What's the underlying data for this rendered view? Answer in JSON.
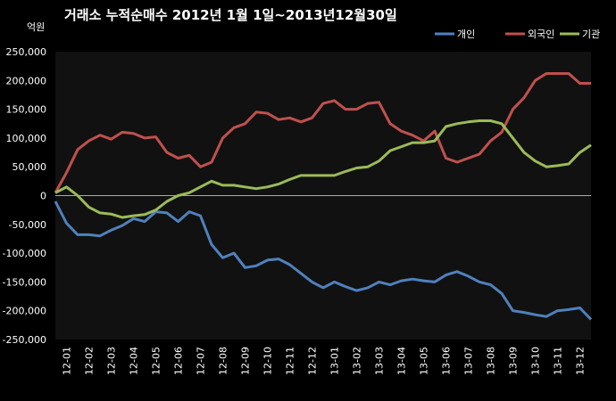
{
  "chart_data": {
    "type": "line",
    "title": "거래소 누적순매수 2012년 1월 1일~2013년12월30일",
    "y_unit_label": "억원",
    "ylim": [
      -250000,
      250000
    ],
    "y_ticks": [
      250000,
      200000,
      150000,
      100000,
      50000,
      0,
      -50000,
      -100000,
      -150000,
      -200000,
      -250000
    ],
    "y_tick_labels": [
      "250,000",
      "200,000",
      "150,000",
      "100,000",
      "50,000",
      "0",
      "-50,000",
      "-100,000",
      "-150,000",
      "-200,000",
      "-250,000"
    ],
    "x_tick_labels": [
      "12-01",
      "12-02",
      "12-03",
      "12-04",
      "12-05",
      "12-06",
      "12-07",
      "12-08",
      "12-09",
      "12-10",
      "12-11",
      "12-12",
      "13-01",
      "13-02",
      "13-03",
      "13-04",
      "13-05",
      "13-06",
      "13-07",
      "13-08",
      "13-09",
      "13-10",
      "13-11",
      "13-12"
    ],
    "grid": false,
    "legend_position": "top-right",
    "x": [
      0,
      0.5,
      1,
      1.5,
      2,
      2.5,
      3,
      3.5,
      4,
      4.5,
      5,
      5.5,
      6,
      6.5,
      7,
      7.5,
      8,
      8.5,
      9,
      9.5,
      10,
      10.5,
      11,
      11.5,
      12,
      12.5,
      13,
      13.5,
      14,
      14.5,
      15,
      15.5,
      16,
      16.5,
      17,
      17.5,
      18,
      18.5,
      19,
      19.5,
      20,
      20.5,
      21,
      21.5,
      22,
      22.5,
      23,
      23.5,
      24
    ],
    "series": [
      {
        "name": "개인",
        "color": "#4F81BD",
        "values": [
          -10000,
          -48000,
          -68000,
          -68000,
          -70000,
          -60000,
          -52000,
          -40000,
          -45000,
          -28000,
          -30000,
          -45000,
          -28000,
          -35000,
          -85000,
          -108000,
          -100000,
          -125000,
          -122000,
          -112000,
          -110000,
          -120000,
          -135000,
          -150000,
          -160000,
          -150000,
          -158000,
          -165000,
          -160000,
          -150000,
          -155000,
          -148000,
          -145000,
          -148000,
          -150000,
          -138000,
          -132000,
          -140000,
          -150000,
          -155000,
          -170000,
          -200000,
          -203000,
          -207000,
          -210000,
          -200000,
          -198000,
          -195000,
          -215000
        ]
      },
      {
        "name": "외국인",
        "color": "#C0504D",
        "values": [
          5000,
          40000,
          80000,
          95000,
          105000,
          98000,
          110000,
          108000,
          100000,
          102000,
          75000,
          65000,
          70000,
          50000,
          58000,
          100000,
          118000,
          125000,
          145000,
          143000,
          132000,
          135000,
          128000,
          135000,
          160000,
          165000,
          150000,
          150000,
          160000,
          162000,
          125000,
          112000,
          105000,
          95000,
          112000,
          65000,
          58000,
          65000,
          72000,
          95000,
          110000,
          150000,
          170000,
          200000,
          212000,
          212000,
          212000,
          195000,
          195000
        ]
      },
      {
        "name": "기관",
        "color": "#9BBB59",
        "values": [
          5000,
          15000,
          0,
          -20000,
          -30000,
          -32000,
          -38000,
          -35000,
          -33000,
          -25000,
          -10000,
          0,
          5000,
          15000,
          25000,
          18000,
          18000,
          15000,
          12000,
          15000,
          20000,
          28000,
          35000,
          35000,
          35000,
          35000,
          42000,
          48000,
          50000,
          60000,
          78000,
          85000,
          92000,
          92000,
          95000,
          120000,
          125000,
          128000,
          130000,
          130000,
          125000,
          100000,
          75000,
          60000,
          50000,
          52000,
          55000,
          75000,
          88000
        ]
      }
    ]
  }
}
